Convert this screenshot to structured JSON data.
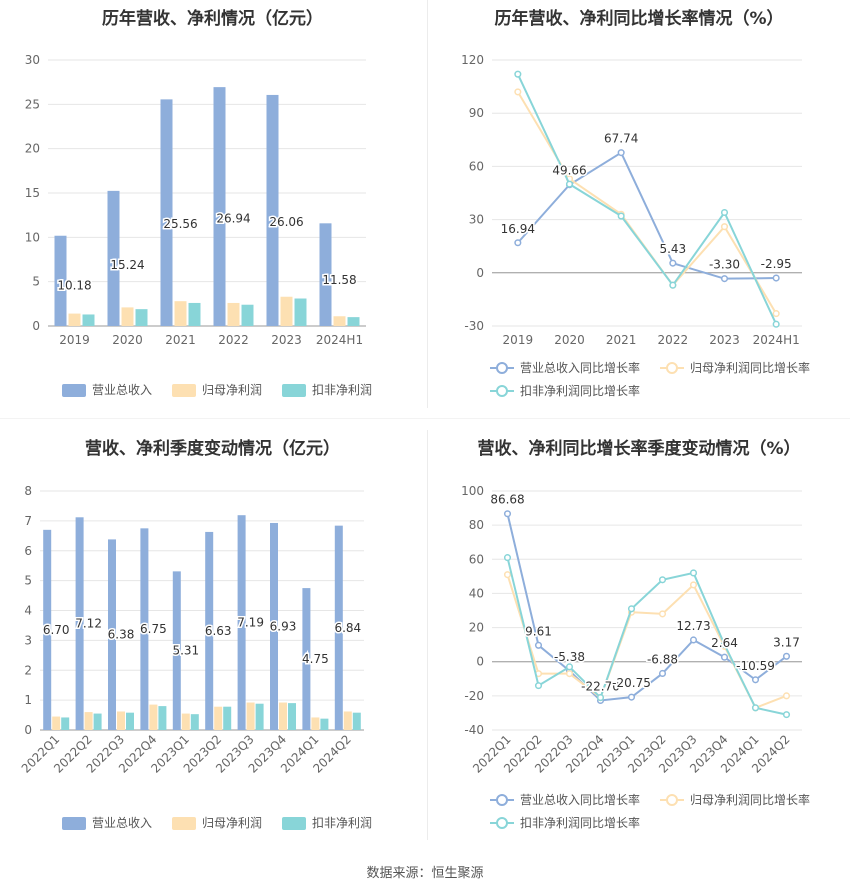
{
  "footer": {
    "source": "数据来源：恒生聚源"
  },
  "colors": {
    "revenue": "#8EAEDB",
    "net_profit": "#FDE0B2",
    "deducted_profit": "#88D5D8"
  },
  "chart_data": [
    {
      "id": "annual_amount",
      "type": "bar",
      "title": "历年营收、净利情况（亿元）",
      "categories": [
        "2019",
        "2020",
        "2021",
        "2022",
        "2023",
        "2024H1"
      ],
      "ylim": [
        0,
        30
      ],
      "yticks": [
        0,
        5,
        10,
        15,
        20,
        25,
        30
      ],
      "grid": true,
      "legend_position": "bottom",
      "series": [
        {
          "name": "营业总收入",
          "color": "#8EAEDB",
          "values": [
            10.18,
            15.24,
            25.56,
            26.94,
            26.06,
            11.58
          ],
          "labels": [
            "10.18",
            "15.24",
            "25.56",
            "26.94",
            "26.06",
            "11.58"
          ]
        },
        {
          "name": "归母净利润",
          "color": "#FDE0B2",
          "values": [
            1.4,
            2.1,
            2.8,
            2.6,
            3.3,
            1.1
          ]
        },
        {
          "name": "扣非净利润",
          "color": "#88D5D8",
          "values": [
            1.3,
            1.9,
            2.6,
            2.4,
            3.1,
            1.0
          ]
        }
      ]
    },
    {
      "id": "annual_growth",
      "type": "line",
      "title": "历年营收、净利同比增长率情况（%）",
      "categories": [
        "2019",
        "2020",
        "2021",
        "2022",
        "2023",
        "2024H1"
      ],
      "ylim": [
        -30,
        120
      ],
      "yticks": [
        -30,
        0,
        30,
        60,
        90,
        120
      ],
      "grid": true,
      "legend_position": "bottom",
      "series": [
        {
          "name": "营业总收入同比增长率",
          "color": "#8EAEDB",
          "values": [
            16.94,
            49.66,
            67.74,
            5.43,
            -3.3,
            -2.95
          ],
          "labels": [
            "16.94",
            "49.66",
            "67.74",
            "5.43",
            "-3.30",
            "-2.95"
          ]
        },
        {
          "name": "归母净利润同比增长率",
          "color": "#FDE0B2",
          "values": [
            102,
            53,
            33,
            -7,
            26,
            -23
          ]
        },
        {
          "name": "扣非净利润同比增长率",
          "color": "#88D5D8",
          "values": [
            112,
            50,
            32,
            -7,
            34,
            -29
          ]
        }
      ]
    },
    {
      "id": "quarterly_amount",
      "type": "bar",
      "title": "营收、净利季度变动情况（亿元）",
      "categories": [
        "2022Q1",
        "2022Q2",
        "2022Q3",
        "2022Q4",
        "2023Q1",
        "2023Q2",
        "2023Q3",
        "2023Q4",
        "2024Q1",
        "2024Q2"
      ],
      "ylim": [
        0,
        8
      ],
      "yticks": [
        0,
        1,
        2,
        3,
        4,
        5,
        6,
        7,
        8
      ],
      "grid": true,
      "legend_position": "bottom",
      "series": [
        {
          "name": "营业总收入",
          "color": "#8EAEDB",
          "values": [
            6.7,
            7.12,
            6.38,
            6.75,
            5.31,
            6.63,
            7.19,
            6.93,
            4.75,
            6.84
          ],
          "labels": [
            "6.70",
            "7.12",
            "6.38",
            "6.75",
            "5.31",
            "6.63",
            "7.19",
            "6.93",
            "4.75",
            "6.84"
          ]
        },
        {
          "name": "归母净利润",
          "color": "#FDE0B2",
          "values": [
            0.45,
            0.6,
            0.62,
            0.85,
            0.55,
            0.78,
            0.92,
            0.92,
            0.42,
            0.62
          ]
        },
        {
          "name": "扣非净利润",
          "color": "#88D5D8",
          "values": [
            0.42,
            0.55,
            0.58,
            0.8,
            0.53,
            0.78,
            0.88,
            0.9,
            0.38,
            0.58
          ]
        }
      ]
    },
    {
      "id": "quarterly_growth",
      "type": "line",
      "title": "营收、净利同比增长率季度变动情况（%）",
      "categories": [
        "2022Q1",
        "2022Q2",
        "2022Q3",
        "2022Q4",
        "2023Q1",
        "2023Q2",
        "2023Q3",
        "2023Q4",
        "2024Q1",
        "2024Q2"
      ],
      "ylim": [
        -40,
        100
      ],
      "yticks": [
        -40,
        -20,
        0,
        20,
        40,
        60,
        80,
        100
      ],
      "grid": true,
      "legend_position": "bottom",
      "series": [
        {
          "name": "营业总收入同比增长率",
          "color": "#8EAEDB",
          "values": [
            86.68,
            9.61,
            -5.38,
            -22.7,
            -20.75,
            -6.88,
            12.73,
            2.64,
            -10.59,
            3.17
          ],
          "labels": [
            "86.68",
            "9.61",
            "-5.38",
            "-22.70",
            "-20.75",
            "-6.88",
            "12.73",
            "2.64",
            "-10.59",
            "3.17"
          ]
        },
        {
          "name": "归母净利润同比增长率",
          "color": "#FDE0B2",
          "values": [
            51,
            -7,
            -7,
            -21,
            29,
            28,
            45,
            9,
            -27,
            -20
          ]
        },
        {
          "name": "扣非净利润同比增长率",
          "color": "#88D5D8",
          "values": [
            61,
            -14,
            -3,
            -21,
            31,
            48,
            52,
            10,
            -27,
            -31
          ]
        }
      ]
    }
  ]
}
